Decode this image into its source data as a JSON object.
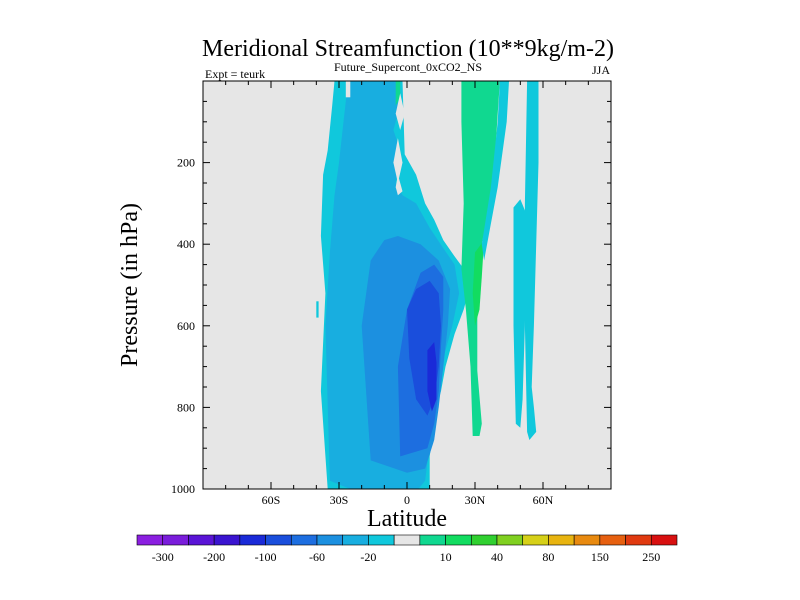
{
  "chart_data": {
    "type": "contour",
    "title": "Meridional Streamfunction (10**9kg/m-2)",
    "subtitle": "Future_Supercont_0xCO2_NS",
    "left_string": "Expt = teurk",
    "right_string": "JJA",
    "xlabel": "Latitude",
    "ylabel": "Pressure (in hPa)",
    "xlim": [
      -90,
      90
    ],
    "ylim": [
      1000,
      0
    ],
    "x_ticks": [
      {
        "value": -60,
        "label": "60S"
      },
      {
        "value": -30,
        "label": "30S"
      },
      {
        "value": 0,
        "label": "0"
      },
      {
        "value": 30,
        "label": "30N"
      },
      {
        "value": 60,
        "label": "60N"
      }
    ],
    "y_ticks": [
      {
        "value": 200,
        "label": "200"
      },
      {
        "value": 400,
        "label": "400"
      },
      {
        "value": 600,
        "label": "600"
      },
      {
        "value": 800,
        "label": "800"
      },
      {
        "value": 1000,
        "label": "1000"
      }
    ],
    "background_color": "#e6e6e6",
    "levels": [
      {
        "label": "-300",
        "color": "#8b1fe0"
      },
      {
        "label": "",
        "color": "#7a1ddb"
      },
      {
        "label": "-200",
        "color": "#5a14d6"
      },
      {
        "label": "",
        "color": "#3a14d0"
      },
      {
        "label": "-100",
        "color": "#1a2ad8"
      },
      {
        "label": "",
        "color": "#1a4edc"
      },
      {
        "label": "-60",
        "color": "#1d6ee0"
      },
      {
        "label": "",
        "color": "#1c90e0"
      },
      {
        "label": "-20",
        "color": "#18aee0"
      },
      {
        "label": "",
        "color": "#10c8dc"
      },
      {
        "label": "",
        "color": "#e6e6e6"
      },
      {
        "label": "10",
        "color": "#10d890"
      },
      {
        "label": "",
        "color": "#12dc60"
      },
      {
        "label": "40",
        "color": "#30d030"
      },
      {
        "label": "",
        "color": "#80d020"
      },
      {
        "label": "80",
        "color": "#d6d018"
      },
      {
        "label": "",
        "color": "#e8b410"
      },
      {
        "label": "150",
        "color": "#e88a10"
      },
      {
        "label": "",
        "color": "#e66010"
      },
      {
        "label": "250",
        "color": "#e03a10"
      },
      {
        "label": "",
        "color": "#d81010"
      }
    ],
    "regions": [
      {
        "name": "cell-outer",
        "level": 9,
        "points": [
          [
            -35,
            1000
          ],
          [
            -38,
            760
          ],
          [
            -36,
            520
          ],
          [
            -38,
            380
          ],
          [
            -37,
            230
          ],
          [
            -35,
            170
          ],
          [
            -33,
            60
          ],
          [
            -32,
            0
          ],
          [
            -2,
            0
          ],
          [
            -1,
            180
          ],
          [
            1,
            200
          ],
          [
            4,
            230
          ],
          [
            8,
            300
          ],
          [
            12,
            340
          ],
          [
            16,
            390
          ],
          [
            21,
            430
          ],
          [
            25,
            460
          ],
          [
            27,
            520
          ],
          [
            25,
            560
          ],
          [
            21,
            620
          ],
          [
            17,
            700
          ],
          [
            15,
            760
          ],
          [
            13,
            800
          ],
          [
            12,
            840
          ],
          [
            11,
            880
          ],
          [
            10,
            920
          ],
          [
            10,
            960
          ],
          [
            10,
            1000
          ]
        ]
      },
      {
        "name": "cell-2",
        "level": 8,
        "points": [
          [
            -34,
            980
          ],
          [
            -36,
            600
          ],
          [
            -34,
            420
          ],
          [
            -32,
            280
          ],
          [
            -30,
            200
          ],
          [
            -28,
            100
          ],
          [
            -26,
            0
          ],
          [
            -4,
            0
          ],
          [
            -4,
            80
          ],
          [
            -6,
            120
          ],
          [
            -3,
            170
          ],
          [
            -5,
            250
          ],
          [
            -2,
            280
          ],
          [
            4,
            300
          ],
          [
            10,
            360
          ],
          [
            16,
            410
          ],
          [
            21,
            450
          ],
          [
            23,
            520
          ],
          [
            20,
            600
          ],
          [
            16,
            680
          ],
          [
            14,
            760
          ],
          [
            12,
            820
          ],
          [
            10,
            890
          ],
          [
            8,
            980
          ],
          [
            5,
            1000
          ],
          [
            -25,
            1000
          ]
        ]
      },
      {
        "name": "cell-3",
        "level": 7,
        "points": [
          [
            -16,
            930
          ],
          [
            -20,
            600
          ],
          [
            -16,
            440
          ],
          [
            -10,
            390
          ],
          [
            -4,
            380
          ],
          [
            6,
            400
          ],
          [
            14,
            440
          ],
          [
            19,
            510
          ],
          [
            18,
            600
          ],
          [
            16,
            700
          ],
          [
            14,
            800
          ],
          [
            12,
            880
          ],
          [
            8,
            950
          ],
          [
            0,
            960
          ]
        ]
      },
      {
        "name": "cell-4",
        "level": 6,
        "points": [
          [
            -3,
            920
          ],
          [
            -4,
            700
          ],
          [
            0,
            560
          ],
          [
            6,
            470
          ],
          [
            12,
            450
          ],
          [
            16,
            480
          ],
          [
            16,
            560
          ],
          [
            15,
            650
          ],
          [
            14,
            760
          ],
          [
            12,
            840
          ],
          [
            9,
            900
          ]
        ]
      },
      {
        "name": "cell-5",
        "level": 5,
        "points": [
          [
            0,
            560
          ],
          [
            4,
            510
          ],
          [
            10,
            490
          ],
          [
            14,
            520
          ],
          [
            15,
            600
          ],
          [
            14,
            700
          ],
          [
            12,
            780
          ],
          [
            9,
            820
          ],
          [
            4,
            780
          ],
          [
            1,
            680
          ]
        ]
      },
      {
        "name": "cell-6",
        "level": 4,
        "points": [
          [
            9,
            660
          ],
          [
            12,
            640
          ],
          [
            13,
            690
          ],
          [
            13,
            780
          ],
          [
            11,
            810
          ],
          [
            9,
            760
          ]
        ]
      },
      {
        "name": "n-ridge",
        "level": 11,
        "points": [
          [
            24,
            0
          ],
          [
            41,
            0
          ],
          [
            40,
            80
          ],
          [
            38,
            260
          ],
          [
            33,
            400
          ],
          [
            31,
            530
          ],
          [
            31,
            710
          ],
          [
            33,
            840
          ],
          [
            32,
            870
          ],
          [
            29,
            870
          ],
          [
            28,
            700
          ],
          [
            26,
            560
          ],
          [
            24,
            460
          ],
          [
            25,
            300
          ],
          [
            24,
            100
          ]
        ]
      },
      {
        "name": "n-ridge-core",
        "level": 12,
        "points": [
          [
            30,
            420
          ],
          [
            34,
            390
          ],
          [
            33,
            480
          ],
          [
            32,
            560
          ],
          [
            30,
            600
          ],
          [
            29,
            520
          ]
        ]
      },
      {
        "name": "nh-neg-band",
        "level": 9,
        "points": [
          [
            41,
            0
          ],
          [
            45,
            0
          ],
          [
            44,
            100
          ],
          [
            40,
            260
          ],
          [
            36,
            380
          ],
          [
            34,
            440
          ],
          [
            33,
            400
          ],
          [
            37,
            260
          ],
          [
            40,
            100
          ]
        ]
      },
      {
        "name": "nh-neg-column",
        "level": 9,
        "points": [
          [
            53,
            0
          ],
          [
            58,
            0
          ],
          [
            58,
            200
          ],
          [
            57,
            400
          ],
          [
            56,
            600
          ],
          [
            55,
            750
          ],
          [
            56,
            800
          ],
          [
            57,
            860
          ],
          [
            54,
            880
          ],
          [
            53,
            860
          ],
          [
            52,
            600
          ],
          [
            52,
            300
          ]
        ]
      },
      {
        "name": "nh-neg-tongue",
        "level": 9,
        "points": [
          [
            47,
            310
          ],
          [
            50,
            290
          ],
          [
            53,
            330
          ],
          [
            52,
            600
          ],
          [
            51,
            780
          ],
          [
            50,
            850
          ],
          [
            48,
            840
          ],
          [
            47,
            600
          ]
        ]
      },
      {
        "name": "upper-pos-strip",
        "level": 11,
        "points": [
          [
            -5,
            0
          ],
          [
            -3,
            0
          ],
          [
            -3,
            40
          ],
          [
            -5,
            60
          ]
        ]
      },
      {
        "name": "eq-gap-1",
        "level": 10,
        "points": [
          [
            -3,
            30
          ],
          [
            -1,
            80
          ],
          [
            -3,
            120
          ],
          [
            -5,
            80
          ]
        ]
      },
      {
        "name": "eq-gap-2",
        "level": 10,
        "points": [
          [
            -4,
            140
          ],
          [
            -2,
            200
          ],
          [
            -4,
            250
          ],
          [
            -6,
            200
          ]
        ]
      },
      {
        "name": "eq-gap-3",
        "level": 10,
        "points": [
          [
            -4,
            230
          ],
          [
            -2,
            270
          ],
          [
            -4,
            280
          ],
          [
            -5,
            260
          ]
        ]
      },
      {
        "name": "sh-upper-notch",
        "level": 10,
        "points": [
          [
            -27,
            0
          ],
          [
            -25,
            0
          ],
          [
            -25,
            40
          ],
          [
            -27,
            40
          ]
        ]
      },
      {
        "name": "sh-tick",
        "level": 9,
        "points": [
          [
            -40,
            540
          ],
          [
            -39,
            540
          ],
          [
            -39,
            580
          ],
          [
            -40,
            580
          ]
        ]
      }
    ]
  }
}
